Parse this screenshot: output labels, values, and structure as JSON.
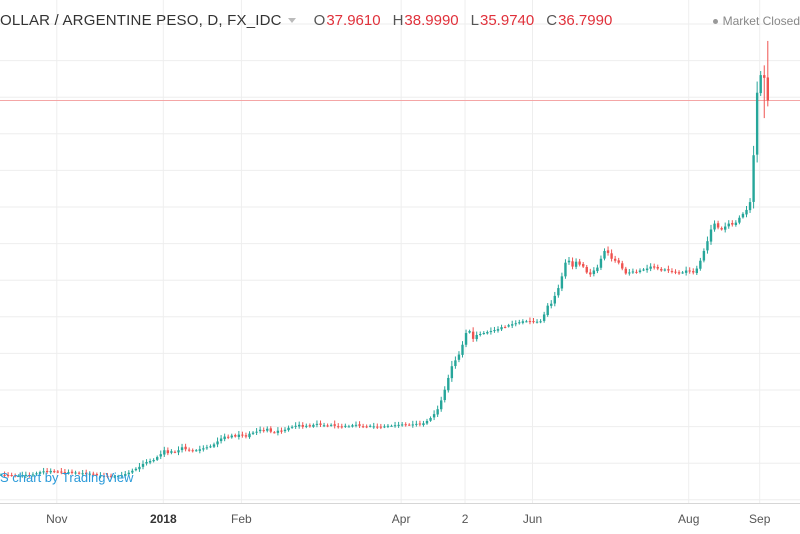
{
  "header": {
    "symbol": "OLLAR / ARGENTINE PESO, D, FX_IDC",
    "ohlc": [
      {
        "label": "O",
        "value": "37.9610"
      },
      {
        "label": "H",
        "value": "38.9990"
      },
      {
        "label": "L",
        "value": "35.9740"
      },
      {
        "label": "C",
        "value": "36.7990"
      }
    ]
  },
  "status": {
    "text": "Market Closed"
  },
  "attribution": {
    "text": "S chart by TradingView"
  },
  "colors": {
    "up": "#26a69a",
    "down": "#ef5350",
    "grid": "#eeeeee",
    "price_line": "#f4a6a6"
  },
  "chart_data": {
    "type": "candlestick",
    "x_axis_ticks": [
      {
        "label": "Nov",
        "bold": false,
        "index": 16
      },
      {
        "label": "2018",
        "bold": true,
        "index": 46
      },
      {
        "label": "Feb",
        "bold": false,
        "index": 68
      },
      {
        "label": "Apr",
        "bold": false,
        "index": 113
      },
      {
        "label": "2",
        "bold": false,
        "index": 131
      },
      {
        "label": "Jun",
        "bold": false,
        "index": 150
      },
      {
        "label": "Aug",
        "bold": false,
        "index": 194
      },
      {
        "label": "Sep",
        "bold": false,
        "index": 214
      }
    ],
    "last_close": 36.799,
    "ylim": [
      16.2,
      40.0
    ],
    "closes": [
      17.65,
      17.62,
      17.6,
      17.63,
      17.58,
      17.6,
      17.62,
      17.64,
      17.6,
      17.66,
      17.72,
      17.78,
      17.82,
      17.8,
      17.84,
      17.8,
      17.78,
      17.8,
      17.75,
      17.78,
      17.74,
      17.76,
      17.7,
      17.72,
      17.68,
      17.7,
      17.66,
      17.62,
      17.6,
      17.58,
      17.56,
      17.55,
      17.56,
      17.58,
      17.62,
      17.68,
      17.75,
      17.85,
      17.95,
      18.05,
      18.2,
      18.3,
      18.35,
      18.4,
      18.55,
      18.7,
      18.9,
      18.75,
      18.85,
      18.8,
      18.9,
      19.05,
      18.95,
      18.9,
      18.85,
      18.9,
      18.95,
      19.0,
      19.05,
      19.1,
      19.2,
      19.35,
      19.5,
      19.6,
      19.55,
      19.65,
      19.6,
      19.7,
      19.65,
      19.6,
      19.75,
      19.8,
      19.85,
      19.95,
      19.9,
      20.0,
      19.85,
      19.8,
      19.9,
      19.85,
      19.95,
      20.05,
      20.1,
      20.15,
      20.2,
      20.1,
      20.15,
      20.12,
      20.2,
      20.25,
      20.2,
      20.18,
      20.15,
      20.2,
      20.15,
      20.12,
      20.1,
      20.15,
      20.12,
      20.18,
      20.2,
      20.15,
      20.12,
      20.1,
      20.15,
      20.12,
      20.1,
      20.08,
      20.12,
      20.15,
      20.15,
      20.18,
      20.2,
      20.22,
      20.18,
      20.2,
      20.22,
      20.25,
      20.22,
      20.28,
      20.4,
      20.55,
      20.75,
      21.0,
      21.45,
      22.0,
      22.6,
      23.2,
      23.5,
      23.8,
      24.3,
      24.9,
      25.0,
      24.6,
      24.8,
      24.85,
      24.9,
      24.95,
      25.0,
      25.05,
      25.1,
      25.2,
      25.2,
      25.3,
      25.35,
      25.4,
      25.45,
      25.5,
      25.5,
      25.48,
      25.5,
      25.48,
      25.5,
      25.85,
      26.3,
      26.4,
      26.8,
      27.2,
      27.8,
      28.5,
      28.6,
      28.3,
      28.55,
      28.4,
      28.3,
      28.0,
      27.9,
      28.1,
      28.25,
      28.7,
      29.1,
      29.0,
      28.7,
      28.6,
      28.5,
      28.2,
      27.95,
      28.0,
      28.05,
      28.02,
      28.1,
      28.15,
      28.2,
      28.3,
      28.25,
      28.2,
      28.1,
      28.15,
      28.1,
      28.05,
      28.0,
      27.95,
      28.0,
      28.1,
      28.05,
      28.0,
      28.2,
      28.6,
      29.1,
      29.6,
      30.2,
      30.5,
      30.3,
      30.2,
      30.35,
      30.5,
      30.45,
      30.55,
      30.8,
      31.0,
      31.2,
      31.6,
      34.0,
      37.2,
      38.1,
      37.96,
      36.8
    ],
    "spikes": {
      "217": {
        "high": 38.999,
        "low": 35.974
      },
      "216": {
        "high": 39.85,
        "low": 36.5
      },
      "215": {
        "high": 38.6,
        "low": 35.9
      }
    }
  }
}
